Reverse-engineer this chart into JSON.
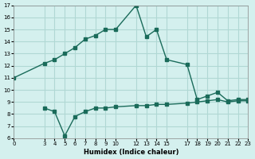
{
  "xlabel": "Humidex (Indice chaleur)",
  "background_color": "#d4f0ee",
  "line_color": "#1a6b5a",
  "grid_color": "#b0d8d4",
  "series1_x": [
    0,
    3,
    4,
    5,
    6,
    7,
    8,
    9,
    10,
    12,
    13,
    14,
    15,
    17,
    18,
    19,
    20,
    21,
    22,
    23
  ],
  "series1_y": [
    11,
    12.2,
    12.5,
    13.0,
    13.5,
    14.2,
    14.5,
    15.0,
    15.0,
    17.0,
    14.4,
    15.0,
    12.5,
    12.1,
    9.2,
    9.5,
    9.8,
    9.1,
    9.2,
    9.2
  ],
  "series2_x": [
    3,
    4,
    5,
    6,
    7,
    8,
    9,
    10,
    12,
    13,
    14,
    15,
    17,
    18,
    19,
    20,
    21,
    22,
    23
  ],
  "series2_y": [
    8.5,
    8.2,
    6.2,
    7.8,
    8.2,
    8.5,
    8.5,
    8.6,
    8.7,
    8.7,
    8.8,
    8.8,
    8.9,
    9.0,
    9.1,
    9.2,
    9.0,
    9.1,
    9.1
  ],
  "xlim": [
    0,
    23
  ],
  "ylim": [
    6,
    17
  ],
  "xticks": [
    0,
    3,
    4,
    5,
    6,
    7,
    8,
    9,
    10,
    12,
    13,
    14,
    15,
    17,
    18,
    19,
    20,
    21,
    22,
    23
  ],
  "yticks": [
    6,
    7,
    8,
    9,
    10,
    11,
    12,
    13,
    14,
    15,
    16,
    17
  ]
}
